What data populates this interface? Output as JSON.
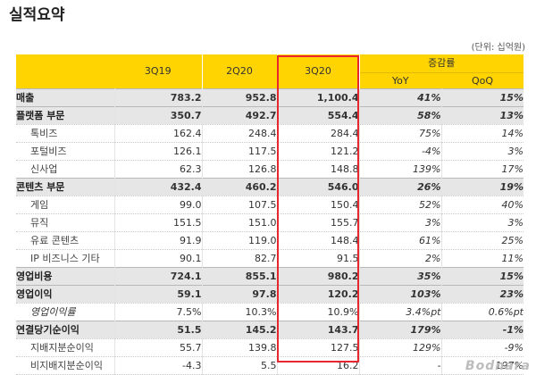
{
  "title": "실적요약",
  "unit_note": "(단위: 십억원)",
  "header": {
    "periods": [
      "3Q19",
      "2Q20",
      "3Q20"
    ],
    "growth_label": "증감률",
    "growth_cols": [
      "YoY",
      "QoQ"
    ]
  },
  "rows": [
    {
      "label": "매출",
      "style": "bold",
      "values": [
        "783.2",
        "952.8",
        "1,100.4"
      ],
      "yoy": "41%",
      "qoq": "15%"
    },
    {
      "label": "플랫폼 부문",
      "style": "bold",
      "values": [
        "350.7",
        "492.7",
        "554.4"
      ],
      "yoy": "58%",
      "qoq": "13%"
    },
    {
      "label": "톡비즈",
      "style": "sub",
      "values": [
        "162.4",
        "248.4",
        "284.4"
      ],
      "yoy": "75%",
      "qoq": "14%"
    },
    {
      "label": "포털비즈",
      "style": "sub",
      "values": [
        "126.1",
        "117.5",
        "121.2"
      ],
      "yoy": "-4%",
      "qoq": "3%"
    },
    {
      "label": "신사업",
      "style": "sub",
      "values": [
        "62.3",
        "126.8",
        "148.8"
      ],
      "yoy": "139%",
      "qoq": "17%"
    },
    {
      "label": "콘텐츠 부문",
      "style": "bold",
      "values": [
        "432.4",
        "460.2",
        "546.0"
      ],
      "yoy": "26%",
      "qoq": "19%"
    },
    {
      "label": "게임",
      "style": "sub",
      "values": [
        "99.0",
        "107.5",
        "150.4"
      ],
      "yoy": "52%",
      "qoq": "40%"
    },
    {
      "label": "뮤직",
      "style": "sub",
      "values": [
        "151.5",
        "151.0",
        "155.7"
      ],
      "yoy": "3%",
      "qoq": "3%"
    },
    {
      "label": "유료 콘텐츠",
      "style": "sub",
      "values": [
        "91.9",
        "119.0",
        "148.4"
      ],
      "yoy": "61%",
      "qoq": "25%"
    },
    {
      "label": "IP 비즈니스 기타",
      "style": "sub",
      "values": [
        "90.1",
        "82.7",
        "91.5"
      ],
      "yoy": "2%",
      "qoq": "11%"
    },
    {
      "label": "영업비용",
      "style": "bold",
      "values": [
        "724.1",
        "855.1",
        "980.2"
      ],
      "yoy": "35%",
      "qoq": "15%"
    },
    {
      "label": "영업이익",
      "style": "bold",
      "values": [
        "59.1",
        "97.8",
        "120.2"
      ],
      "yoy": "103%",
      "qoq": "23%"
    },
    {
      "label": "영업이익률",
      "style": "italic",
      "values": [
        "7.5%",
        "10.3%",
        "10.9%"
      ],
      "yoy": "3.4%pt",
      "qoq": "0.6%pt"
    },
    {
      "label": "연결당기순이익",
      "style": "bold",
      "values": [
        "51.5",
        "145.2",
        "143.7"
      ],
      "yoy": "179%",
      "qoq": "-1%"
    },
    {
      "label": "지배지분순이익",
      "style": "sub",
      "values": [
        "55.7",
        "139.8",
        "127.5"
      ],
      "yoy": "129%",
      "qoq": "-9%"
    },
    {
      "label": "비지배지분순이익",
      "style": "sub",
      "values": [
        "-4.3",
        "5.5",
        "16.2"
      ],
      "yoy": "-",
      "qoq": "197%"
    }
  ],
  "colors": {
    "header_bg": "#ffd400",
    "highlight_border": "#e8262d",
    "bold_row_bg": "#e6e6e6"
  },
  "watermark": "Bodnara"
}
